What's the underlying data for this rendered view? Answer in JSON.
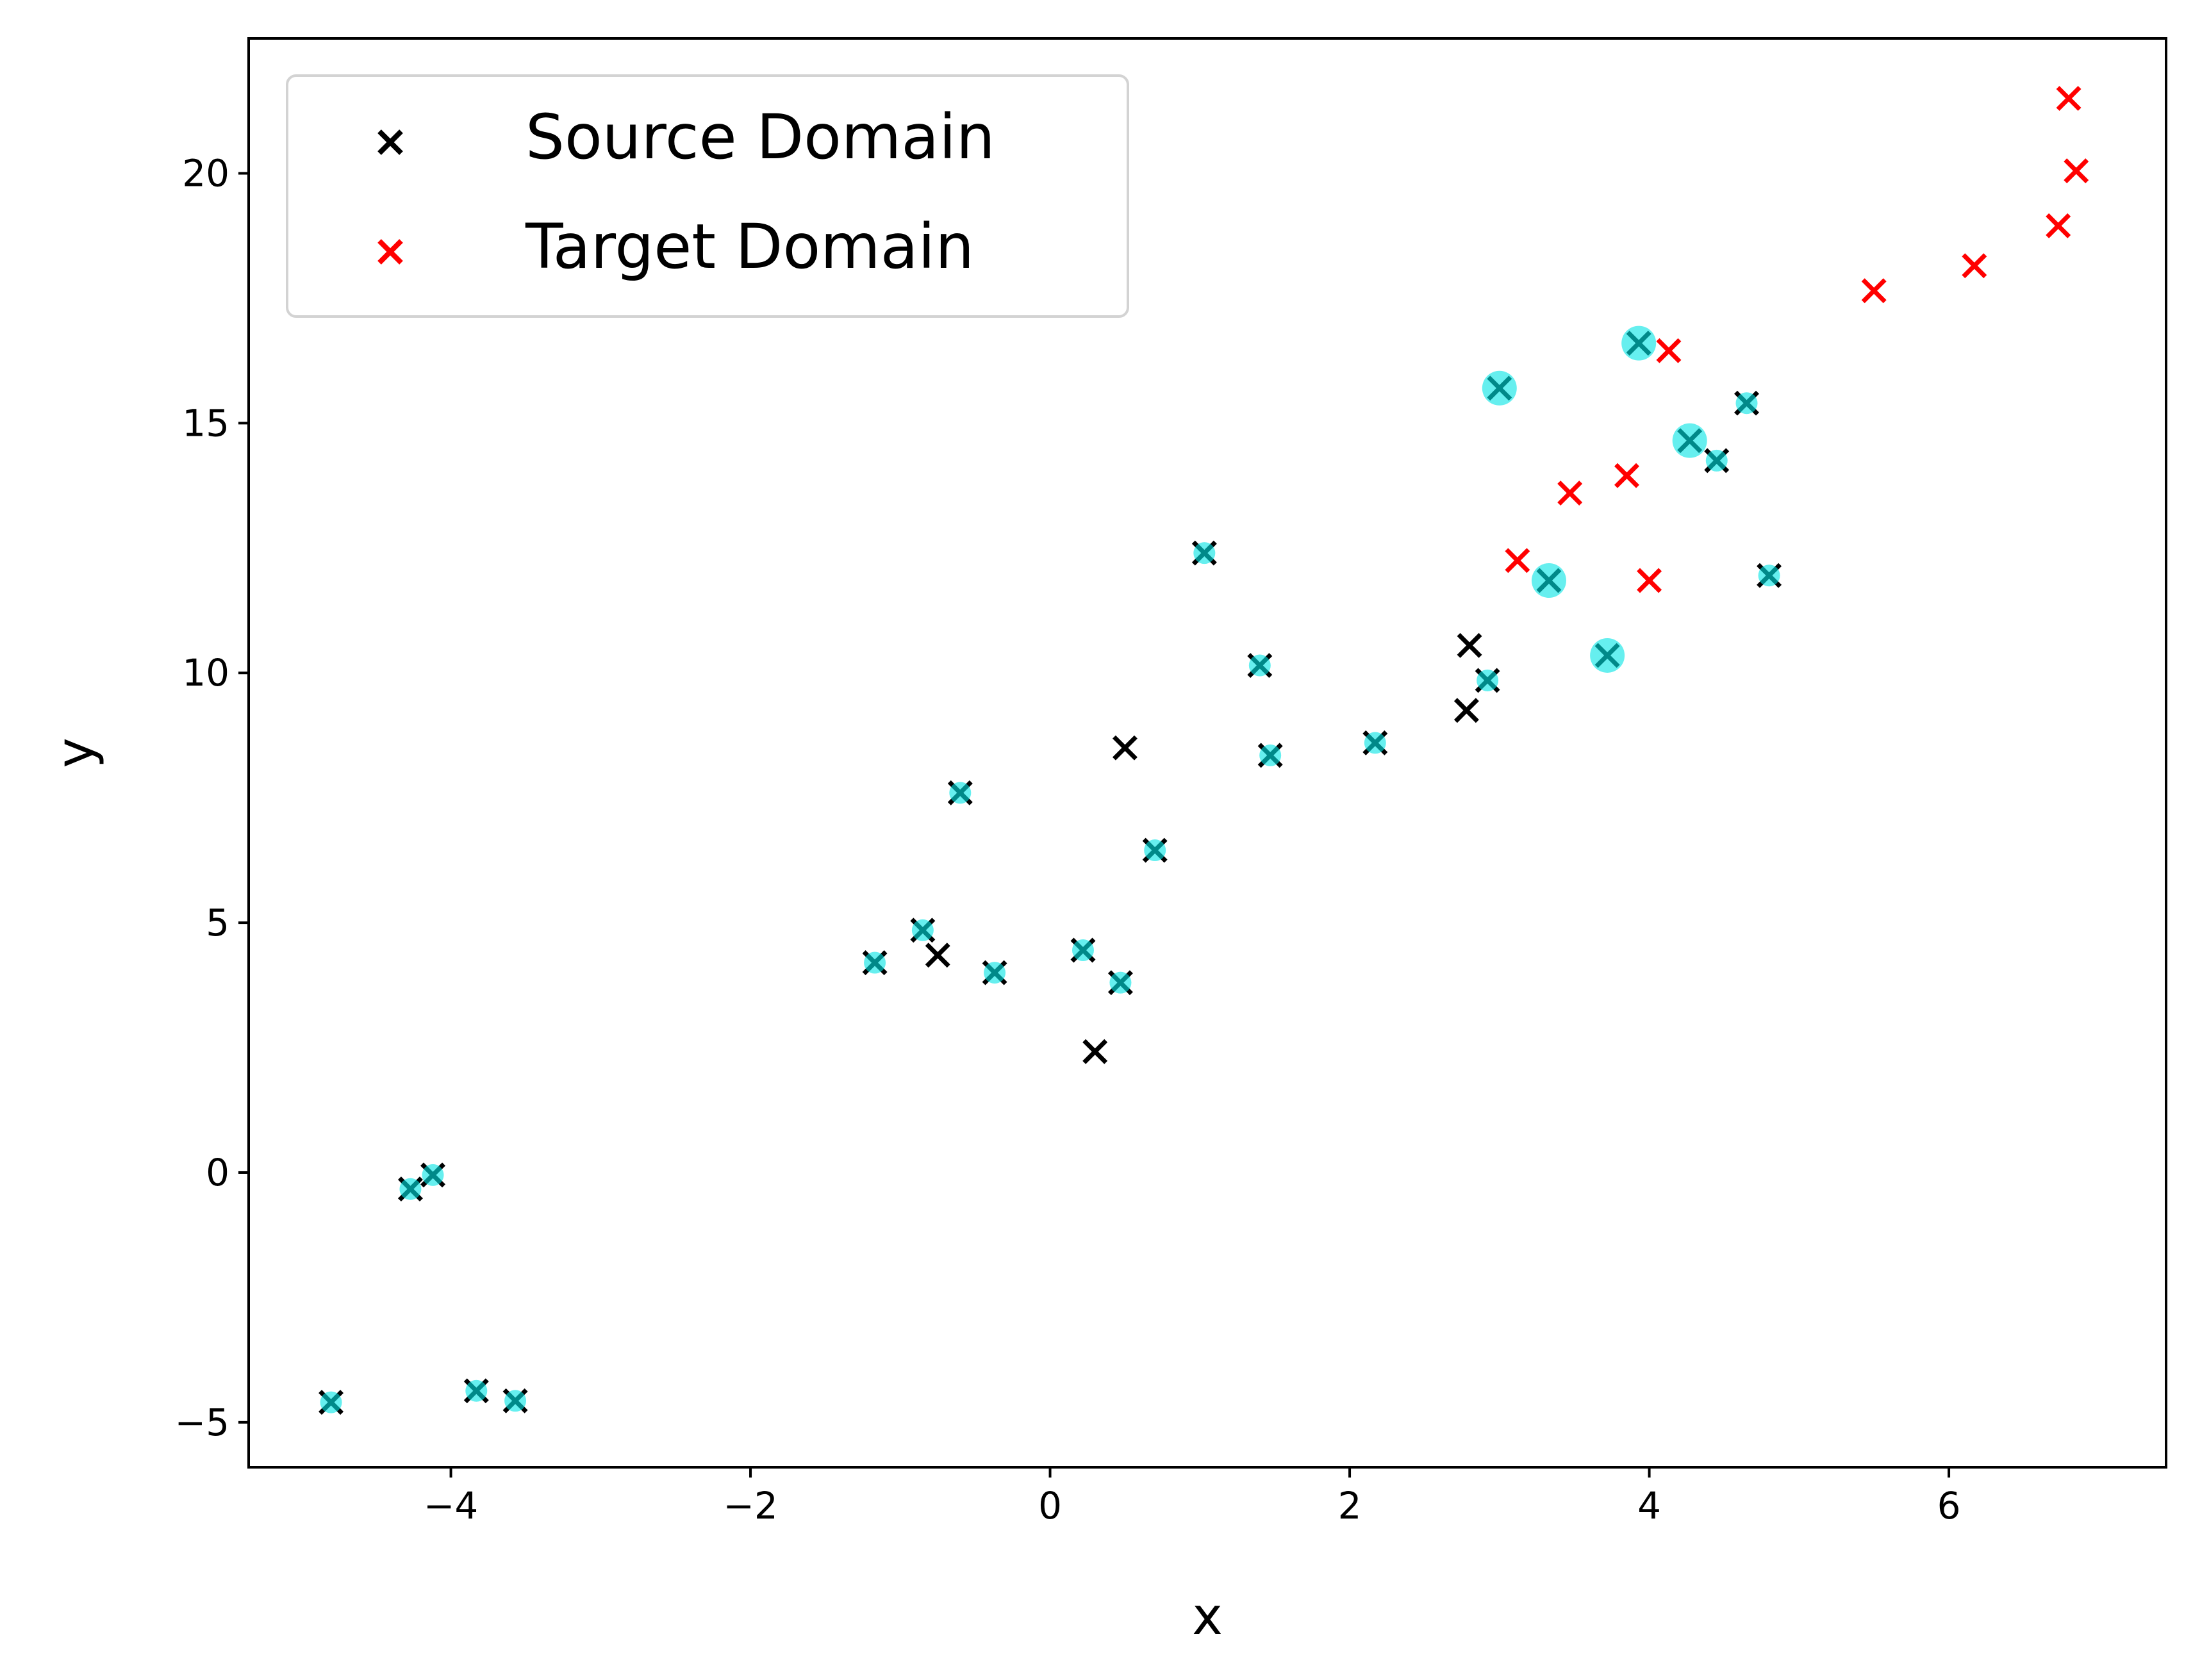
{
  "chart_data": {
    "type": "scatter",
    "xlabel": "x",
    "ylabel": "y",
    "xlim": [
      -5.35,
      7.45
    ],
    "ylim": [
      -5.9,
      22.7
    ],
    "xticks": [
      -4,
      -2,
      0,
      2,
      4,
      6
    ],
    "yticks": [
      -5,
      0,
      5,
      10,
      15,
      20
    ],
    "xtick_labels": [
      "−4",
      "−2",
      "0",
      "2",
      "4",
      "6"
    ],
    "ytick_labels": [
      "−5",
      "0",
      "5",
      "10",
      "15",
      "20"
    ],
    "grid": false,
    "legend_position": "top-left",
    "colors": {
      "source": "#000000",
      "target": "#ff0000",
      "highlight": "#00e5e5"
    },
    "series": [
      {
        "name": "Source Domain",
        "marker": "x",
        "color": "#000000",
        "points": [
          [
            -4.8,
            -4.6
          ],
          [
            -4.27,
            -0.33
          ],
          [
            -4.12,
            -0.05
          ],
          [
            -3.83,
            -4.37
          ],
          [
            -3.57,
            -4.57
          ],
          [
            -1.17,
            4.2
          ],
          [
            -0.85,
            4.85
          ],
          [
            -0.75,
            4.35
          ],
          [
            -0.37,
            4.0
          ],
          [
            -0.6,
            7.6
          ],
          [
            0.22,
            4.45
          ],
          [
            0.3,
            2.42
          ],
          [
            0.47,
            3.8
          ],
          [
            0.5,
            8.5
          ],
          [
            0.7,
            6.45
          ],
          [
            1.03,
            12.4
          ],
          [
            1.4,
            10.15
          ],
          [
            1.47,
            8.35
          ],
          [
            2.17,
            8.6
          ],
          [
            2.78,
            9.25
          ],
          [
            2.8,
            10.55
          ],
          [
            2.92,
            9.85
          ],
          [
            3.0,
            15.7
          ],
          [
            3.33,
            11.85
          ],
          [
            3.72,
            10.35
          ],
          [
            3.93,
            16.6
          ],
          [
            4.27,
            14.65
          ],
          [
            4.45,
            14.25
          ],
          [
            4.65,
            15.4
          ],
          [
            4.8,
            11.95
          ]
        ]
      },
      {
        "name": "Target Domain",
        "marker": "x",
        "color": "#ff0000",
        "points": [
          [
            3.12,
            12.25
          ],
          [
            3.47,
            13.6
          ],
          [
            3.85,
            13.95
          ],
          [
            4.0,
            11.85
          ],
          [
            4.13,
            16.45
          ],
          [
            5.5,
            17.65
          ],
          [
            6.17,
            18.15
          ],
          [
            6.73,
            18.95
          ],
          [
            6.8,
            21.5
          ],
          [
            6.85,
            20.05
          ]
        ]
      },
      {
        "name": "",
        "marker": "o",
        "color": "#00e5e5",
        "small_points": [
          [
            -4.8,
            -4.6
          ],
          [
            -4.27,
            -0.33
          ],
          [
            -4.12,
            -0.05
          ],
          [
            -3.83,
            -4.37
          ],
          [
            -3.57,
            -4.57
          ],
          [
            -1.17,
            4.2
          ],
          [
            -0.85,
            4.85
          ],
          [
            -0.37,
            4.0
          ],
          [
            -0.6,
            7.6
          ],
          [
            0.22,
            4.45
          ],
          [
            0.47,
            3.8
          ],
          [
            0.7,
            6.45
          ],
          [
            1.03,
            12.4
          ],
          [
            1.4,
            10.15
          ],
          [
            1.47,
            8.35
          ],
          [
            2.17,
            8.6
          ],
          [
            2.92,
            9.85
          ],
          [
            4.45,
            14.25
          ],
          [
            4.65,
            15.4
          ],
          [
            4.8,
            11.95
          ]
        ],
        "large_points": [
          [
            3.0,
            15.7
          ],
          [
            3.33,
            11.85
          ],
          [
            3.72,
            10.35
          ],
          [
            3.93,
            16.6
          ],
          [
            4.27,
            14.65
          ]
        ]
      }
    ]
  }
}
